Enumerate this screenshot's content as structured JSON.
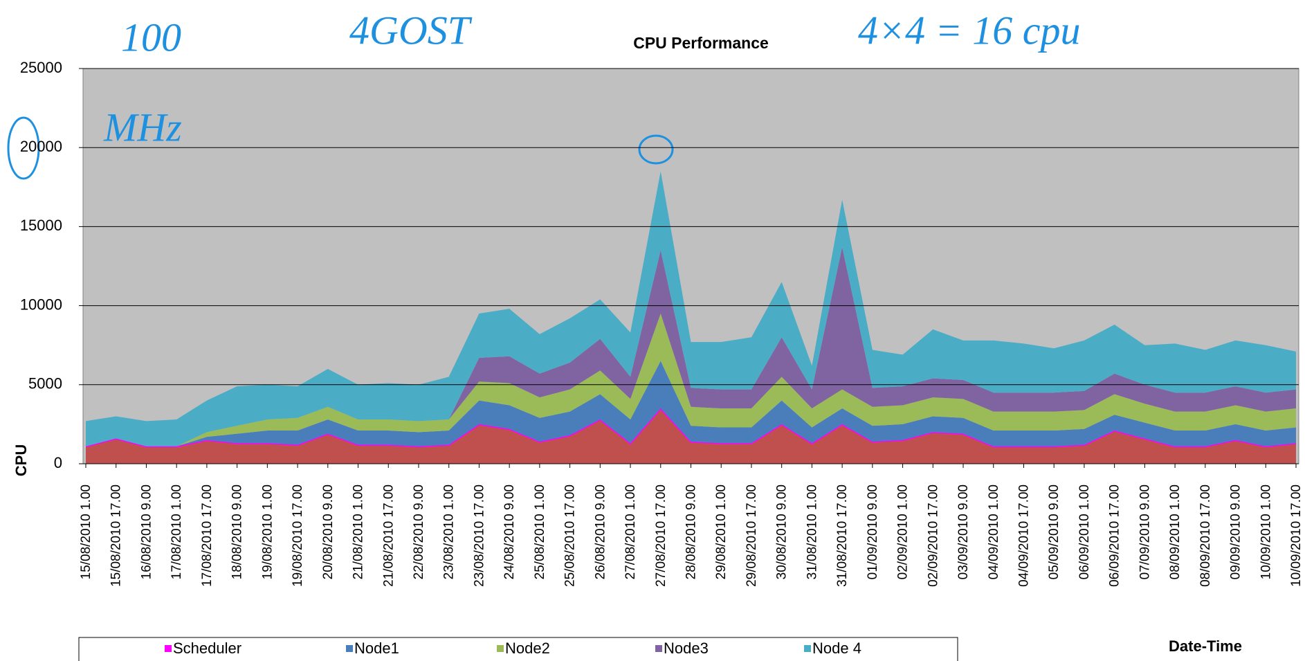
{
  "chart_data": {
    "type": "stacked_area",
    "title": "CPU Performance",
    "y_label": "CPU",
    "x_label": "Date-Time",
    "annotations": [
      "100",
      "4GOST",
      "MHz",
      "4×4 = 16 cpu"
    ],
    "categories": [
      "15/08/2010 1.00",
      "15/08/2010 17.00",
      "16/08/2010 9.00",
      "17/08/2010 1.00",
      "17/08/2010 17.00",
      "18/08/2010 9.00",
      "19/08/2010 1.00",
      "19/08/2010 17.00",
      "20/08/2010 9.00",
      "21/08/2010 1.00",
      "21/08/2010 17.00",
      "22/08/2010 9.00",
      "23/08/2010 1.00",
      "23/08/2010 17.00",
      "24/08/2010 9.00",
      "25/08/2010 1.00",
      "25/08/2010 17.00",
      "26/08/2010 9.00",
      "27/08/2010 1.00",
      "27/08/2010 17.00",
      "28/08/2010 9.00",
      "29/08/2010 1.00",
      "29/08/2010 17.00",
      "30/08/2010 9.00",
      "31/08/2010 1.00",
      "31/08/2010 17.00",
      "01/09/2010 9.00",
      "02/09/2010 1.00",
      "02/09/2010 17.00",
      "03/09/2010 9.00",
      "04/09/2010 1.00",
      "04/09/2010 17.00",
      "05/09/2010 9.00",
      "06/09/2010 1.00",
      "06/09/2010 17.00",
      "07/09/2010 9.00",
      "08/09/2010 1.00",
      "08/09/2010 17.00",
      "09/09/2010 9.00",
      "10/09/2010 1.00",
      "10/09/2010 17.00"
    ],
    "series": [
      {
        "name": "Scheduler",
        "color": "#c0504d",
        "edge_color": "#ff00ff",
        "values": [
          1100,
          1600,
          1100,
          1100,
          1500,
          1300,
          1300,
          1200,
          1900,
          1200,
          1200,
          1100,
          1200,
          2500,
          2200,
          1400,
          1800,
          2800,
          1300,
          3500,
          1400,
          1300,
          1300,
          2500,
          1300,
          2500,
          1400,
          1500,
          2000,
          1900,
          1100,
          1100,
          1100,
          1200,
          2100,
          1600,
          1100,
          1100,
          1500,
          1100,
          1300
        ]
      },
      {
        "name": "Node1",
        "color": "#4a7ebb",
        "values": [
          0,
          0,
          0,
          0,
          200,
          600,
          800,
          900,
          900,
          900,
          900,
          900,
          900,
          1500,
          1500,
          1500,
          1500,
          1600,
          1500,
          3000,
          1000,
          1000,
          1000,
          1500,
          1000,
          1000,
          1000,
          1000,
          1000,
          1000,
          1000,
          1000,
          1000,
          1000,
          1000,
          1000,
          1000,
          1000,
          1000,
          1000,
          1000
        ]
      },
      {
        "name": "Node2",
        "color": "#9bbb59",
        "values": [
          0,
          0,
          0,
          0,
          300,
          500,
          700,
          800,
          800,
          700,
          700,
          700,
          700,
          1200,
          1400,
          1300,
          1400,
          1500,
          1300,
          3000,
          1200,
          1200,
          1200,
          1500,
          1200,
          1200,
          1200,
          1200,
          1200,
          1200,
          1200,
          1200,
          1200,
          1200,
          1300,
          1200,
          1200,
          1200,
          1200,
          1200,
          1200
        ]
      },
      {
        "name": "Node3",
        "color": "#8064a2",
        "values": [
          0,
          0,
          0,
          0,
          0,
          0,
          0,
          0,
          0,
          0,
          0,
          0,
          0,
          1500,
          1700,
          1500,
          1700,
          2000,
          1400,
          4000,
          1200,
          1200,
          1200,
          2500,
          1200,
          9000,
          1200,
          1200,
          1200,
          1200,
          1200,
          1200,
          1200,
          1200,
          1300,
          1200,
          1200,
          1200,
          1200,
          1200,
          1200
        ]
      },
      {
        "name": "Node 4",
        "color": "#4bacc6",
        "values": [
          1600,
          1400,
          1600,
          1700,
          2000,
          2500,
          2200,
          2000,
          2400,
          2200,
          2300,
          2300,
          2700,
          2800,
          3000,
          2500,
          2800,
          2500,
          2800,
          5000,
          2900,
          3000,
          3300,
          3500,
          1500,
          3000,
          2400,
          2000,
          3100,
          2500,
          3300,
          3100,
          2800,
          3200,
          3100,
          2500,
          3100,
          2700,
          2900,
          3000,
          2400
        ]
      }
    ],
    "ylim": [
      0,
      25000
    ],
    "yticks": [
      0,
      5000,
      10000,
      15000,
      20000,
      25000
    ],
    "grid": true,
    "plot_background": "#c0c0c0",
    "legend": "bottom"
  }
}
